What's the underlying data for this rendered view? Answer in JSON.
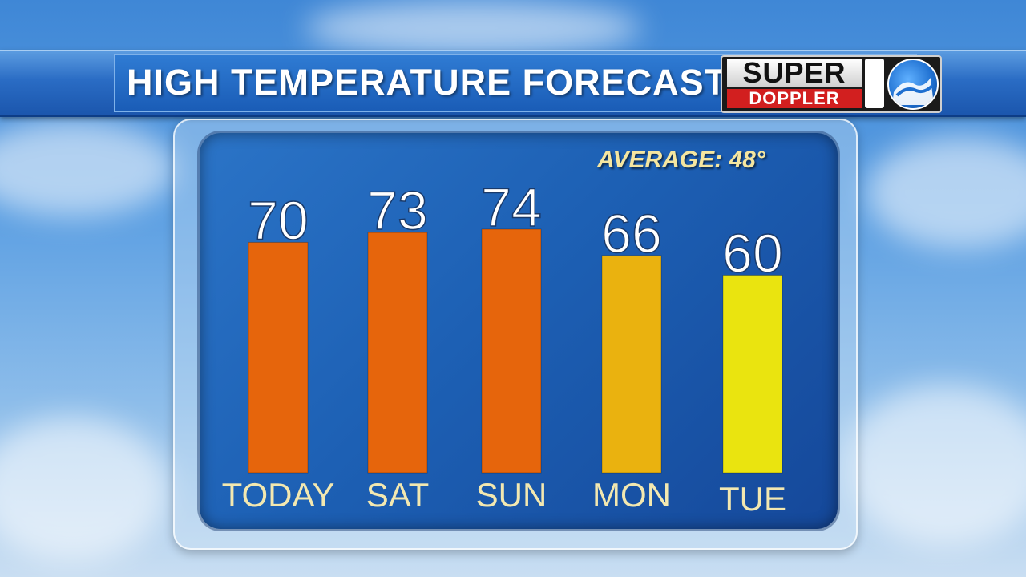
{
  "header": {
    "title": "HIGH TEMPERATURE FORECAST",
    "logo": {
      "top_text": "SUPER",
      "bottom_text": "DOPPLER",
      "number": "10"
    }
  },
  "panel": {
    "average_label": "AVERAGE: 48°"
  },
  "colors": {
    "hot": "#e6650c",
    "warm": "#eab20f",
    "mild": "#eae40f"
  },
  "chart_data": {
    "type": "bar",
    "title": "HIGH TEMPERATURE FORECAST",
    "categories": [
      "TODAY",
      "SAT",
      "SUN",
      "MON",
      "TUE"
    ],
    "values": [
      70,
      73,
      74,
      66,
      60
    ],
    "value_labels": [
      "70",
      "73",
      "74",
      "66",
      "60"
    ],
    "bar_colors": [
      "#e6650c",
      "#e6650c",
      "#e6650c",
      "#eab20f",
      "#eae40f"
    ],
    "ylim": [
      0,
      74
    ],
    "grid": false,
    "xlabel": "",
    "ylabel": ""
  }
}
